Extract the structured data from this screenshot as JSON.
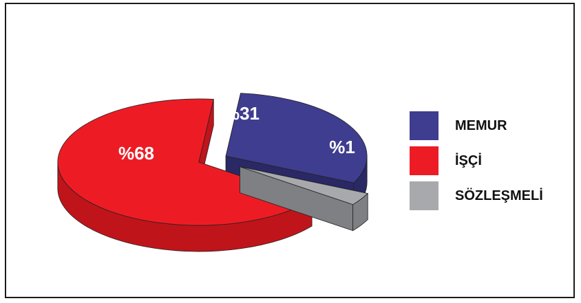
{
  "chart_data": {
    "type": "pie",
    "style": "3d-exploded",
    "categories": [
      "MEMUR",
      "İŞÇİ",
      "SÖZLEŞMELİ"
    ],
    "values": [
      31,
      68,
      1
    ],
    "data_labels": [
      "%31",
      "%68",
      "%1"
    ],
    "legend": {
      "placement": "right",
      "entries": [
        "MEMUR",
        "İŞÇİ",
        "SÖZLEŞMELİ"
      ]
    }
  },
  "colors": {
    "memur": "#3f3d8f",
    "memur_side": "#2a2865",
    "isci": "#ed1c24",
    "isci_side": "#c0141b",
    "sozlesmeli": "#a7a9ac",
    "sozlesmeli_side": "#7e8083",
    "border": "#1a1a1a"
  }
}
